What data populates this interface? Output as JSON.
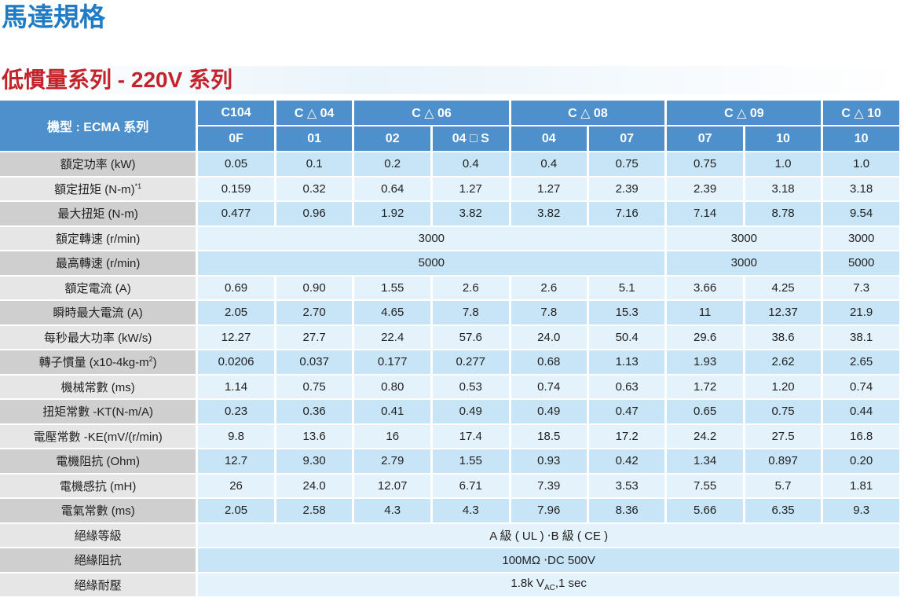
{
  "header": {
    "title": "馬達規格",
    "subtitle": "低慣量系列 -  220V 系列"
  },
  "table": {
    "corner": "機型 : ECMA 系列",
    "groups": [
      {
        "name": "C104",
        "models": [
          "0F"
        ]
      },
      {
        "name": "C △ 04",
        "models": [
          "01"
        ]
      },
      {
        "name": "C △ 06",
        "models": [
          "02",
          "04 □ S"
        ]
      },
      {
        "name": "C △ 08",
        "models": [
          "04",
          "07"
        ]
      },
      {
        "name": "C △ 09",
        "models": [
          "07",
          "10"
        ]
      },
      {
        "name": "C △ 10",
        "models": [
          "10"
        ]
      }
    ],
    "rows": [
      {
        "label": {
          "text": "額定功率 (kW)"
        },
        "cells": [
          "0.05",
          "0.1",
          "0.2",
          "0.4",
          "0.4",
          "0.75",
          "0.75",
          "1.0",
          "1.0"
        ]
      },
      {
        "label": {
          "text": "額定扭矩 (N-m)",
          "sup": "*1"
        },
        "cells": [
          "0.159",
          "0.32",
          "0.64",
          "1.27",
          "1.27",
          "2.39",
          "2.39",
          "3.18",
          "3.18"
        ]
      },
      {
        "label": {
          "text": "最大扭矩 (N-m)"
        },
        "cells": [
          "0.477",
          "0.96",
          "1.92",
          "3.82",
          "3.82",
          "7.16",
          "7.14",
          "8.78",
          "9.54"
        ]
      },
      {
        "label": {
          "text": "額定轉速 (r/min)"
        },
        "cells": [
          {
            "text": "3000",
            "span": 6
          },
          {
            "text": "3000",
            "span": 2
          },
          "3000"
        ]
      },
      {
        "label": {
          "text": "最高轉速 (r/min)"
        },
        "cells": [
          {
            "text": "5000",
            "span": 6
          },
          {
            "text": "3000",
            "span": 2
          },
          "5000"
        ]
      },
      {
        "label": {
          "text": "額定電流 (A)"
        },
        "cells": [
          "0.69",
          "0.90",
          "1.55",
          "2.6",
          "2.6",
          "5.1",
          "3.66",
          "4.25",
          "7.3"
        ]
      },
      {
        "label": {
          "text": "瞬時最大電流 (A)"
        },
        "cells": [
          "2.05",
          "2.70",
          "4.65",
          "7.8",
          "7.8",
          "15.3",
          "11",
          "12.37",
          "21.9"
        ]
      },
      {
        "label": {
          "text": "每秒最大功率 (kW/s)"
        },
        "cells": [
          "12.27",
          "27.7",
          "22.4",
          "57.6",
          "24.0",
          "50.4",
          "29.6",
          "38.6",
          "38.1"
        ]
      },
      {
        "label": {
          "text": "轉子慣量 (x10-4kg-m",
          "sup": "2",
          "after": ")"
        },
        "cells": [
          "0.0206",
          "0.037",
          "0.177",
          "0.277",
          "0.68",
          "1.13",
          "1.93",
          "2.62",
          "2.65"
        ]
      },
      {
        "label": {
          "text": "機械常數 (ms)"
        },
        "cells": [
          "1.14",
          "0.75",
          "0.80",
          "0.53",
          "0.74",
          "0.63",
          "1.72",
          "1.20",
          "0.74"
        ]
      },
      {
        "label": {
          "text": "扭矩常數 -KT(N-m/A)"
        },
        "cells": [
          "0.23",
          "0.36",
          "0.41",
          "0.49",
          "0.49",
          "0.47",
          "0.65",
          "0.75",
          "0.44"
        ]
      },
      {
        "label": {
          "text": "電壓常數 -KE(mV/(r/min)"
        },
        "cells": [
          "9.8",
          "13.6",
          "16",
          "17.4",
          "18.5",
          "17.2",
          "24.2",
          "27.5",
          "16.8"
        ]
      },
      {
        "label": {
          "text": "電機阻抗 (Ohm)"
        },
        "cells": [
          "12.7",
          "9.30",
          "2.79",
          "1.55",
          "0.93",
          "0.42",
          "1.34",
          "0.897",
          "0.20"
        ]
      },
      {
        "label": {
          "text": "電機感抗 (mH)"
        },
        "cells": [
          "26",
          "24.0",
          "12.07",
          "6.71",
          "7.39",
          "3.53",
          "7.55",
          "5.7",
          "1.81"
        ]
      },
      {
        "label": {
          "text": "電氣常數 (ms)"
        },
        "cells": [
          "2.05",
          "2.58",
          "4.3",
          "4.3",
          "7.96",
          "8.36",
          "5.66",
          "6.35",
          "9.3"
        ]
      },
      {
        "label": {
          "text": "絕緣等級"
        },
        "cells": [
          {
            "text": "A 級 ( UL ) ‧B 級 ( CE )",
            "span": 9
          }
        ]
      },
      {
        "label": {
          "text": "絕緣阻抗"
        },
        "cells": [
          {
            "text": "100MΩ ‧DC 500V",
            "span": 9
          }
        ]
      },
      {
        "label": {
          "text": "絕緣耐壓"
        },
        "cells": [
          {
            "text": "1.8k V",
            "sub": "AC",
            "after": ",1 sec",
            "span": 9
          }
        ]
      }
    ]
  }
}
